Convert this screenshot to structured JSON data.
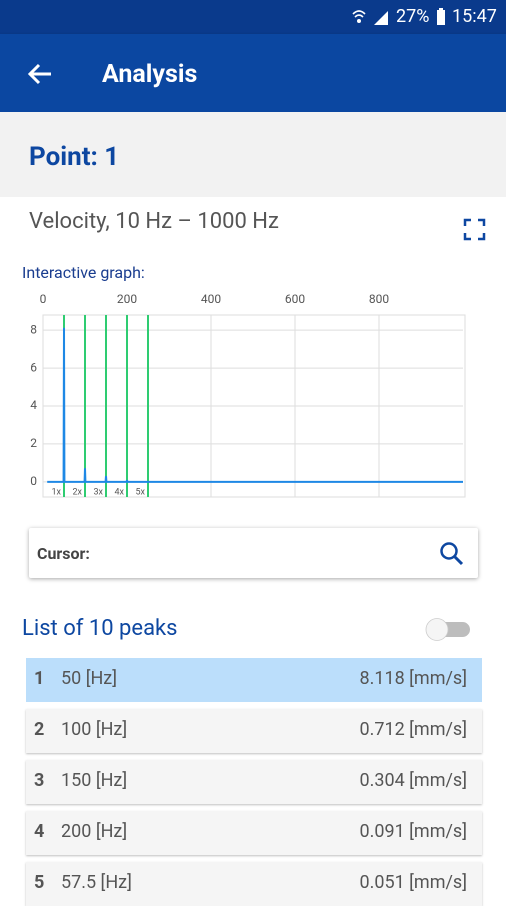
{
  "status_bar": {
    "battery": "27%",
    "time": "15:47"
  },
  "app_bar": {
    "title": "Analysis"
  },
  "point": {
    "title": "Point: 1"
  },
  "measurement": {
    "title": "Velocity, 10 Hz – 1000 Hz"
  },
  "graph_label": "Interactive graph:",
  "chart_data": {
    "type": "line",
    "x": [
      10,
      49,
      50,
      51,
      99,
      100,
      101,
      149,
      150,
      151,
      199,
      200,
      201,
      1000
    ],
    "series": [
      {
        "color": "#1e88e5",
        "values": [
          0,
          0,
          8.118,
          0,
          0,
          0.712,
          0,
          0,
          0.304,
          0,
          0,
          0.091,
          0,
          0
        ]
      }
    ],
    "markers": {
      "x": [
        50,
        100,
        150,
        200,
        250
      ],
      "labels": [
        "1x",
        "2x",
        "3x",
        "4x",
        "5x"
      ],
      "color": "#2ecc71"
    },
    "xlim": [
      0,
      1000
    ],
    "xticks": [
      0,
      200,
      400,
      600,
      800
    ],
    "ylim": [
      -0.8,
      8.8
    ],
    "yticks": [
      0,
      2,
      4,
      6,
      8
    ],
    "grid": true
  },
  "cursor": {
    "label": "Cursor:"
  },
  "peaks": {
    "title": "List of 10 peaks",
    "rows": [
      [
        "1",
        "50 [Hz]",
        "8.118 [mm/s]"
      ],
      [
        "2",
        "100 [Hz]",
        "0.712 [mm/s]"
      ],
      [
        "3",
        "150 [Hz]",
        "0.304 [mm/s]"
      ],
      [
        "4",
        "200 [Hz]",
        "0.091 [mm/s]"
      ],
      [
        "5",
        "57.5 [Hz]",
        "0.051 [mm/s]"
      ]
    ]
  }
}
